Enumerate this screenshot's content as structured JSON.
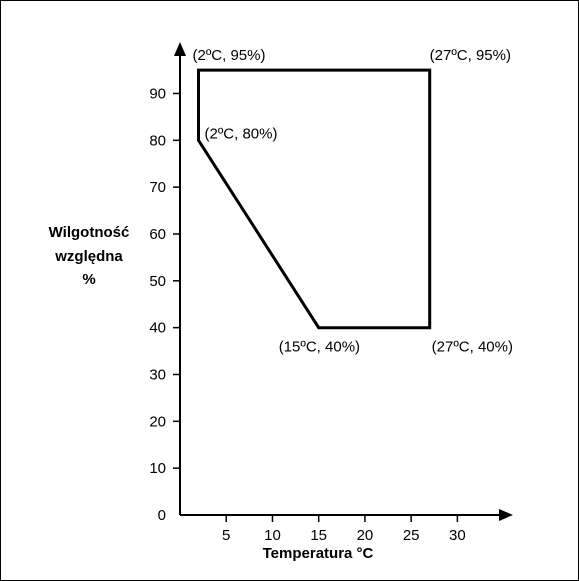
{
  "chart_data": {
    "type": "line",
    "xlabel": "Temperatura °C",
    "ylabel_lines": [
      "Wilgotność",
      "względna",
      "%"
    ],
    "x_ticks": [
      5,
      10,
      15,
      20,
      25,
      30
    ],
    "y_ticks": [
      0,
      10,
      20,
      30,
      40,
      50,
      60,
      70,
      80,
      90
    ],
    "xlim": [
      0,
      34.5
    ],
    "ylim": [
      0,
      98
    ],
    "grid": false,
    "series": [
      {
        "closed": true,
        "points": [
          {
            "x": 2,
            "y": 95,
            "label": "(2ºC, 95%)"
          },
          {
            "x": 27,
            "y": 95,
            "label": "(27ºC, 95%)"
          },
          {
            "x": 27,
            "y": 40,
            "label": "(27ºC, 40%)"
          },
          {
            "x": 15,
            "y": 40,
            "label": "(15ºC, 40%)"
          },
          {
            "x": 2,
            "y": 80,
            "label": "(2ºC, 80%)"
          }
        ]
      }
    ],
    "colors": {
      "axis": "#000000",
      "line": "#000000"
    }
  }
}
